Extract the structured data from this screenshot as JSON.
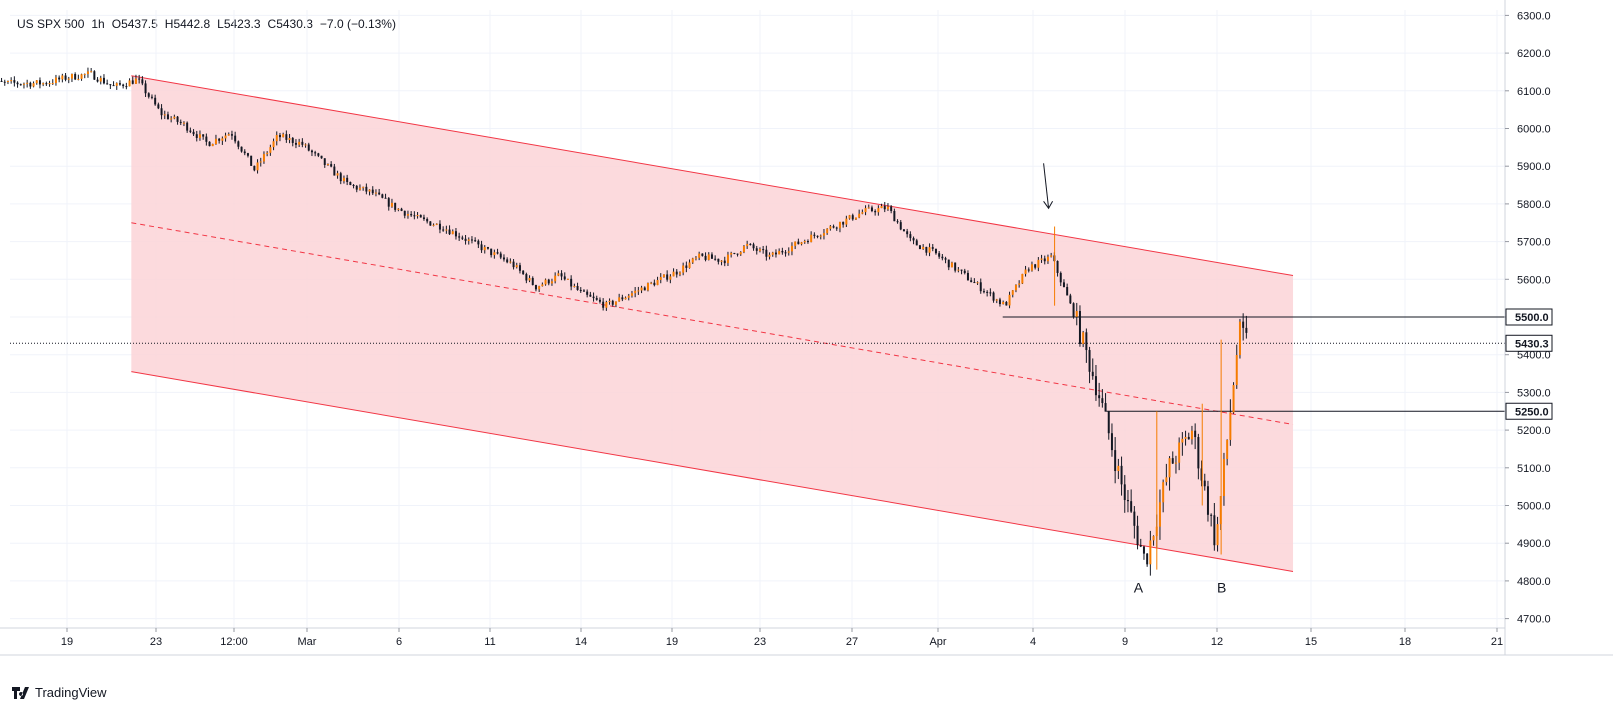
{
  "legend": {
    "symbol": "US SPX 500",
    "interval": "1h",
    "open": "O5437.5",
    "high": "H5442.8",
    "low": "L5423.3",
    "close": "C5430.3",
    "change": "−7.0 (−0.13%)"
  },
  "brand": {
    "label": "TradingView",
    "icon": "tradingview-logo-icon"
  },
  "colors": {
    "channel_fill": "#fbd3d7",
    "channel_line": "#f23645",
    "candle": "#131722",
    "wick_accent": "#f57c00",
    "axis_text": "#131722",
    "grid": "#f0f3fa"
  },
  "chart_data": {
    "type": "candlestick",
    "title": "",
    "y_ticks": [
      "4700.0",
      "4800.0",
      "4900.0",
      "5000.0",
      "5100.0",
      "5200.0",
      "5300.0",
      "5400.0",
      "5500.0",
      "5600.0",
      "5700.0",
      "5800.0",
      "5900.0",
      "6000.0",
      "6100.0",
      "6200.0",
      "6300.0"
    ],
    "ylim": [
      4670,
      6315
    ],
    "x_ticks": [
      "19",
      "23",
      "12:00",
      "Mar",
      "6",
      "11",
      "14",
      "19",
      "23",
      "27",
      "Apr",
      "4",
      "9",
      "12",
      "15",
      "18",
      "21"
    ],
    "grid": true,
    "price_path": [
      [
        "Feb 18",
        6120
      ],
      [
        "Feb 19",
        6135
      ],
      [
        "Feb 20",
        6145
      ],
      [
        "Feb 21",
        6110
      ],
      [
        "Feb 22",
        6130
      ],
      [
        "Feb 23",
        6040
      ],
      [
        "Feb 24",
        6010
      ],
      [
        "Feb 25",
        5960
      ],
      [
        "Feb 26",
        5990
      ],
      [
        "Feb 27",
        5890
      ],
      [
        "Feb 28",
        5980
      ],
      [
        "Mar 1",
        5960
      ],
      [
        "Mar 3",
        5850
      ],
      [
        "Mar 4",
        5830
      ],
      [
        "Mar 5",
        5790
      ],
      [
        "Mar 6",
        5760
      ],
      [
        "Mar 7",
        5740
      ],
      [
        "Mar 10",
        5640
      ],
      [
        "Mar 11",
        5580
      ],
      [
        "Mar 12",
        5610
      ],
      [
        "Mar 13",
        5560
      ],
      [
        "Mar 14",
        5530
      ],
      [
        "Mar 17",
        5620
      ],
      [
        "Mar 18",
        5660
      ],
      [
        "Mar 19",
        5650
      ],
      [
        "Mar 20",
        5690
      ],
      [
        "Mar 21",
        5660
      ],
      [
        "Mar 24",
        5750
      ],
      [
        "Mar 25",
        5780
      ],
      [
        "Mar 26",
        5790
      ],
      [
        "Mar 27",
        5700
      ],
      [
        "Mar 28",
        5670
      ],
      [
        "Mar 31",
        5530
      ],
      [
        "Apr 1",
        5630
      ],
      [
        "Apr 2",
        5660
      ],
      [
        "Apr 3",
        5500
      ],
      [
        "Apr 4",
        5300
      ],
      [
        "Apr 5",
        5050
      ],
      [
        "Apr 6",
        4850
      ],
      [
        "Apr 7",
        5100
      ],
      [
        "Apr 8",
        5200
      ],
      [
        "Apr 9",
        4900
      ],
      [
        "Apr 10",
        5460
      ],
      [
        "Apr 10 end",
        5430
      ]
    ],
    "channel": {
      "upper": [
        [
          "Feb 22",
          6140
        ],
        [
          "Apr 12",
          5610
        ]
      ],
      "middle": [
        [
          "Feb 22",
          5750
        ],
        [
          "Apr 12",
          5215
        ]
      ],
      "lower": [
        [
          "Feb 22",
          5355
        ],
        [
          "Apr 12",
          4825
        ]
      ],
      "style": "filled descending parallel channel, dashed midline"
    },
    "horizontal_lines": [
      {
        "price": 5500,
        "label": "5500.0"
      },
      {
        "price": 5250,
        "label": "5250.0"
      }
    ],
    "last_price": {
      "price": 5430.3,
      "label": "5430.3"
    },
    "annotations": [
      {
        "text": "A",
        "at": [
          "Apr 6",
          4790
        ]
      },
      {
        "text": "B",
        "at": [
          "Apr 9",
          4790
        ]
      },
      {
        "text": "",
        "type": "arrow",
        "points_to": [
          "Apr 2",
          5730
        ]
      }
    ]
  }
}
